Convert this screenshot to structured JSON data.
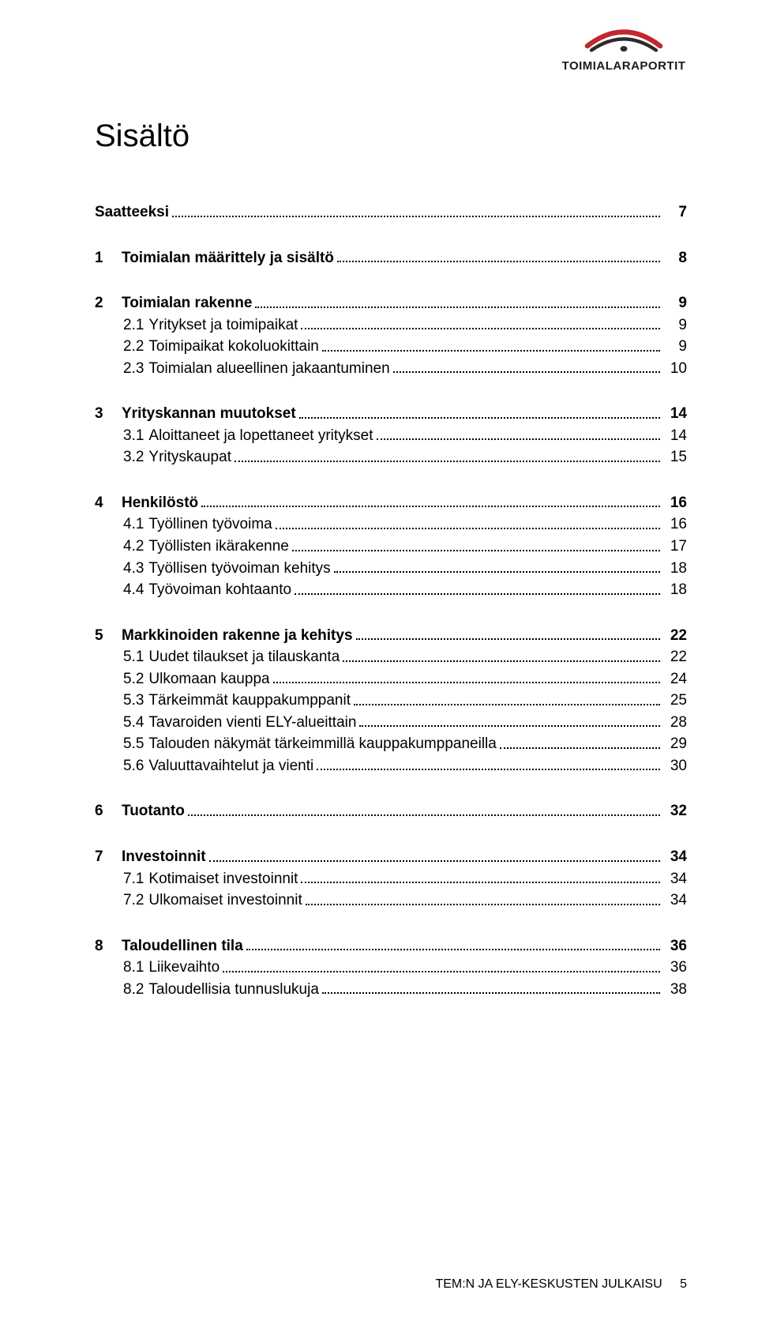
{
  "logo": {
    "brand": "TOIMIALARAPORTIT",
    "arc_red": "#c1272d",
    "arc_dark": "#2b2b2b"
  },
  "title": "Sisältö",
  "toc": [
    {
      "level": 0,
      "num": "",
      "label": "Saatteeksi",
      "page": "7"
    },
    {
      "level": 0,
      "num": "1",
      "label": "Toimialan määrittely ja sisältö",
      "page": "8"
    },
    {
      "level": 0,
      "num": "2",
      "label": "Toimialan rakenne",
      "page": "9"
    },
    {
      "level": 1,
      "num": "2.1",
      "label": "Yritykset ja toimipaikat",
      "page": "9"
    },
    {
      "level": 1,
      "num": "2.2",
      "label": "Toimipaikat kokoluokittain",
      "page": "9"
    },
    {
      "level": 1,
      "num": "2.3",
      "label": "Toimialan alueellinen jakaantuminen",
      "page": "10"
    },
    {
      "level": 0,
      "num": "3",
      "label": "Yrityskannan muutokset",
      "page": "14"
    },
    {
      "level": 1,
      "num": "3.1",
      "label": "Aloittaneet ja lopettaneet yritykset",
      "page": "14"
    },
    {
      "level": 1,
      "num": "3.2",
      "label": "Yrityskaupat",
      "page": "15"
    },
    {
      "level": 0,
      "num": "4",
      "label": "Henkilöstö",
      "page": "16"
    },
    {
      "level": 1,
      "num": "4.1",
      "label": "Työllinen työvoima",
      "page": "16"
    },
    {
      "level": 1,
      "num": "4.2",
      "label": "Työllisten ikärakenne",
      "page": "17"
    },
    {
      "level": 1,
      "num": "4.3",
      "label": "Työllisen työvoiman kehitys",
      "page": "18"
    },
    {
      "level": 1,
      "num": "4.4",
      "label": "Työvoiman kohtaanto",
      "page": "18"
    },
    {
      "level": 0,
      "num": "5",
      "label": "Markkinoiden rakenne ja kehitys",
      "page": "22"
    },
    {
      "level": 1,
      "num": "5.1",
      "label": "Uudet tilaukset ja tilauskanta",
      "page": "22"
    },
    {
      "level": 1,
      "num": "5.2",
      "label": "Ulkomaan kauppa",
      "page": "24"
    },
    {
      "level": 1,
      "num": "5.3",
      "label": "Tärkeimmät kauppakumppanit",
      "page": "25"
    },
    {
      "level": 1,
      "num": "5.4",
      "label": "Tavaroiden vienti ELY-alueittain",
      "page": "28"
    },
    {
      "level": 1,
      "num": "5.5",
      "label": "Talouden näkymät tärkeimmillä kauppakumppaneilla",
      "page": "29"
    },
    {
      "level": 1,
      "num": "5.6",
      "label": "Valuuttavaihtelut ja vienti",
      "page": "30"
    },
    {
      "level": 0,
      "num": "6",
      "label": "Tuotanto",
      "page": "32"
    },
    {
      "level": 0,
      "num": "7",
      "label": "Investoinnit",
      "page": "34"
    },
    {
      "level": 1,
      "num": "7.1",
      "label": "Kotimaiset investoinnit",
      "page": "34"
    },
    {
      "level": 1,
      "num": "7.2",
      "label": "Ulkomaiset investoinnit",
      "page": "34"
    },
    {
      "level": 0,
      "num": "8",
      "label": "Taloudellinen tila",
      "page": "36"
    },
    {
      "level": 1,
      "num": "8.1",
      "label": "Liikevaihto",
      "page": "36"
    },
    {
      "level": 1,
      "num": "8.2",
      "label": "Taloudellisia tunnuslukuja",
      "page": "38"
    }
  ],
  "footer": {
    "text": "TEM:N JA ELY-KESKUSTEN JULKAISU",
    "page": "5"
  }
}
